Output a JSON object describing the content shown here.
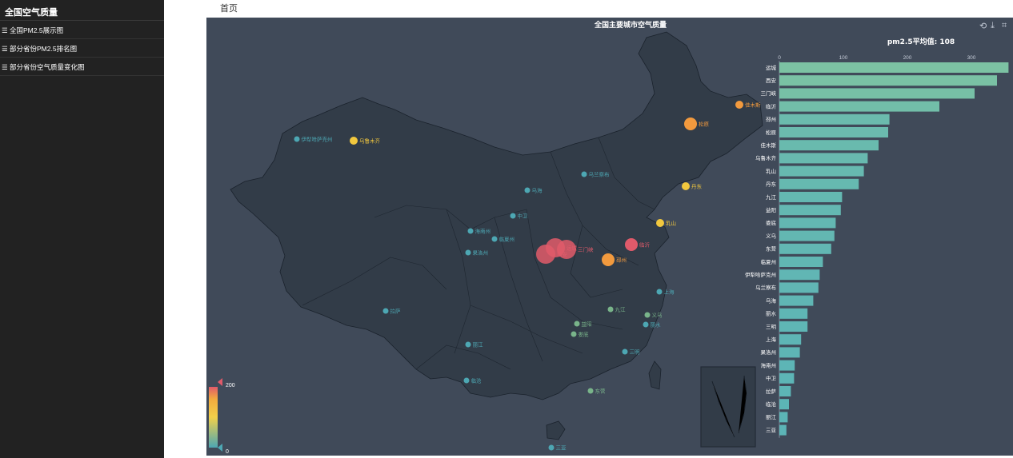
{
  "sidebar": {
    "title": "全国空气质量",
    "items": [
      {
        "label": "全国PM2.5展示图",
        "icon": "menu-icon"
      },
      {
        "label": "部分省份PM2.5排名图",
        "icon": "menu-icon"
      },
      {
        "label": "部分省份空气质量变化图",
        "icon": "menu-icon"
      }
    ]
  },
  "breadcrumb": "首页",
  "colors": {
    "sidebar_bg": "#222222",
    "chart_bg": "#404a59",
    "map_fill": "#323c48",
    "bar_start": "#5bb4b7",
    "bar_end": "#7cc2a3",
    "high": "#e05a6a",
    "mid": "#f2aa3e",
    "low": "#4da7b3"
  },
  "toolbar": {
    "icons": [
      "restore-icon",
      "save-icon",
      "data-zoom-icon"
    ]
  },
  "chart_data": {
    "type": "bar",
    "title": "全国主要城市空气质量",
    "subtitle": "pm2.5平均值: 108",
    "xlim": [
      0,
      360
    ],
    "xticks": [
      0,
      100,
      200,
      300
    ],
    "categories": [
      "运城",
      "西安",
      "三门峡",
      "临沂",
      "邳州",
      "松原",
      "佳木斯",
      "乌鲁木齐",
      "乳山",
      "丹东",
      "九江",
      "益阳",
      "娄底",
      "义乌",
      "东营",
      "临夏州",
      "伊犁哈萨克州",
      "乌兰察布",
      "乌海",
      "丽水",
      "三明",
      "上海",
      "果洛州",
      "海南州",
      "中卫",
      "拉萨",
      "临沧",
      "丽江",
      "三亚"
    ],
    "values": [
      358,
      340,
      305,
      250,
      172,
      170,
      155,
      138,
      132,
      124,
      98,
      96,
      88,
      86,
      81,
      68,
      63,
      61,
      53,
      44,
      44,
      34,
      32,
      24,
      23,
      18,
      15,
      13,
      11
    ],
    "visual_map": {
      "min": 0,
      "max": 200,
      "min_label": "0",
      "max_label": "200"
    },
    "map_points": [
      {
        "name": "伊犁哈萨克州",
        "value": 63
      },
      {
        "name": "乌鲁木齐",
        "value": 138
      },
      {
        "name": "乌兰察布",
        "value": 61
      },
      {
        "name": "乌海",
        "value": 53
      },
      {
        "name": "中卫",
        "value": 23
      },
      {
        "name": "海南州",
        "value": 24
      },
      {
        "name": "临夏州",
        "value": 68
      },
      {
        "name": "果洛州",
        "value": 32
      },
      {
        "name": "佳木斯",
        "value": 155
      },
      {
        "name": "松原",
        "value": 170
      },
      {
        "name": "丹东",
        "value": 124
      },
      {
        "name": "乳山",
        "value": 132
      },
      {
        "name": "运城",
        "value": 358
      },
      {
        "name": "西安",
        "value": 340
      },
      {
        "name": "三门峡",
        "value": 305
      },
      {
        "name": "临沂",
        "value": 250
      },
      {
        "name": "邳州",
        "value": 172
      },
      {
        "name": "上海",
        "value": 34
      },
      {
        "name": "拉萨",
        "value": 18
      },
      {
        "name": "九江",
        "value": 98
      },
      {
        "name": "义乌",
        "value": 86
      },
      {
        "name": "丽水",
        "value": 44
      },
      {
        "name": "益阳",
        "value": 96
      },
      {
        "name": "娄底",
        "value": 88
      },
      {
        "name": "丽江",
        "value": 13
      },
      {
        "name": "三明",
        "value": 44
      },
      {
        "name": "临沧",
        "value": 15
      },
      {
        "name": "东营",
        "value": 81
      },
      {
        "name": "三亚",
        "value": 11
      }
    ]
  }
}
